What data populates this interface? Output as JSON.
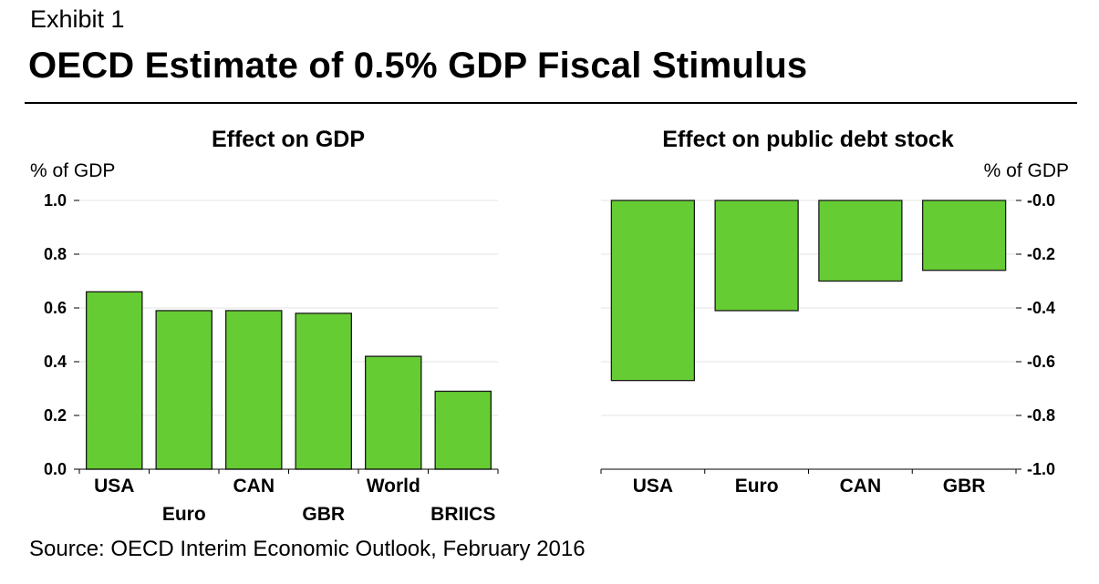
{
  "exhibit_label": "Exhibit 1",
  "title": "OECD Estimate of 0.5% GDP Fiscal Stimulus",
  "source": "Source: OECD Interim Economic Outlook, February 2016",
  "colors": {
    "bar_fill": "#66cc33",
    "bar_stroke": "#1a1a1a",
    "grid": "#e3e3e3",
    "axis": "#000000"
  },
  "chart_data": [
    {
      "type": "bar",
      "title": "Effect on GDP",
      "ylabel": "% of GDP",
      "ylabel_position": "left",
      "categories": [
        "USA",
        "Euro",
        "CAN",
        "GBR",
        "World",
        "BRIICS"
      ],
      "values": [
        0.66,
        0.59,
        0.59,
        0.58,
        0.42,
        0.29
      ],
      "ylim": [
        0.0,
        1.0
      ],
      "yticks": [
        "0.0",
        "0.2",
        "0.4",
        "0.6",
        "0.8",
        "1.0"
      ],
      "grid": true
    },
    {
      "type": "bar",
      "title": "Effect on public debt stock",
      "ylabel": "% of GDP",
      "ylabel_position": "right",
      "categories": [
        "USA",
        "Euro",
        "CAN",
        "GBR"
      ],
      "values": [
        -0.67,
        -0.41,
        -0.3,
        -0.26
      ],
      "ylim": [
        -1.0,
        0.0
      ],
      "yticks": [
        "-1.0",
        "-0.8",
        "-0.6",
        "-0.4",
        "-0.2",
        "-0.0"
      ],
      "grid": true
    }
  ]
}
